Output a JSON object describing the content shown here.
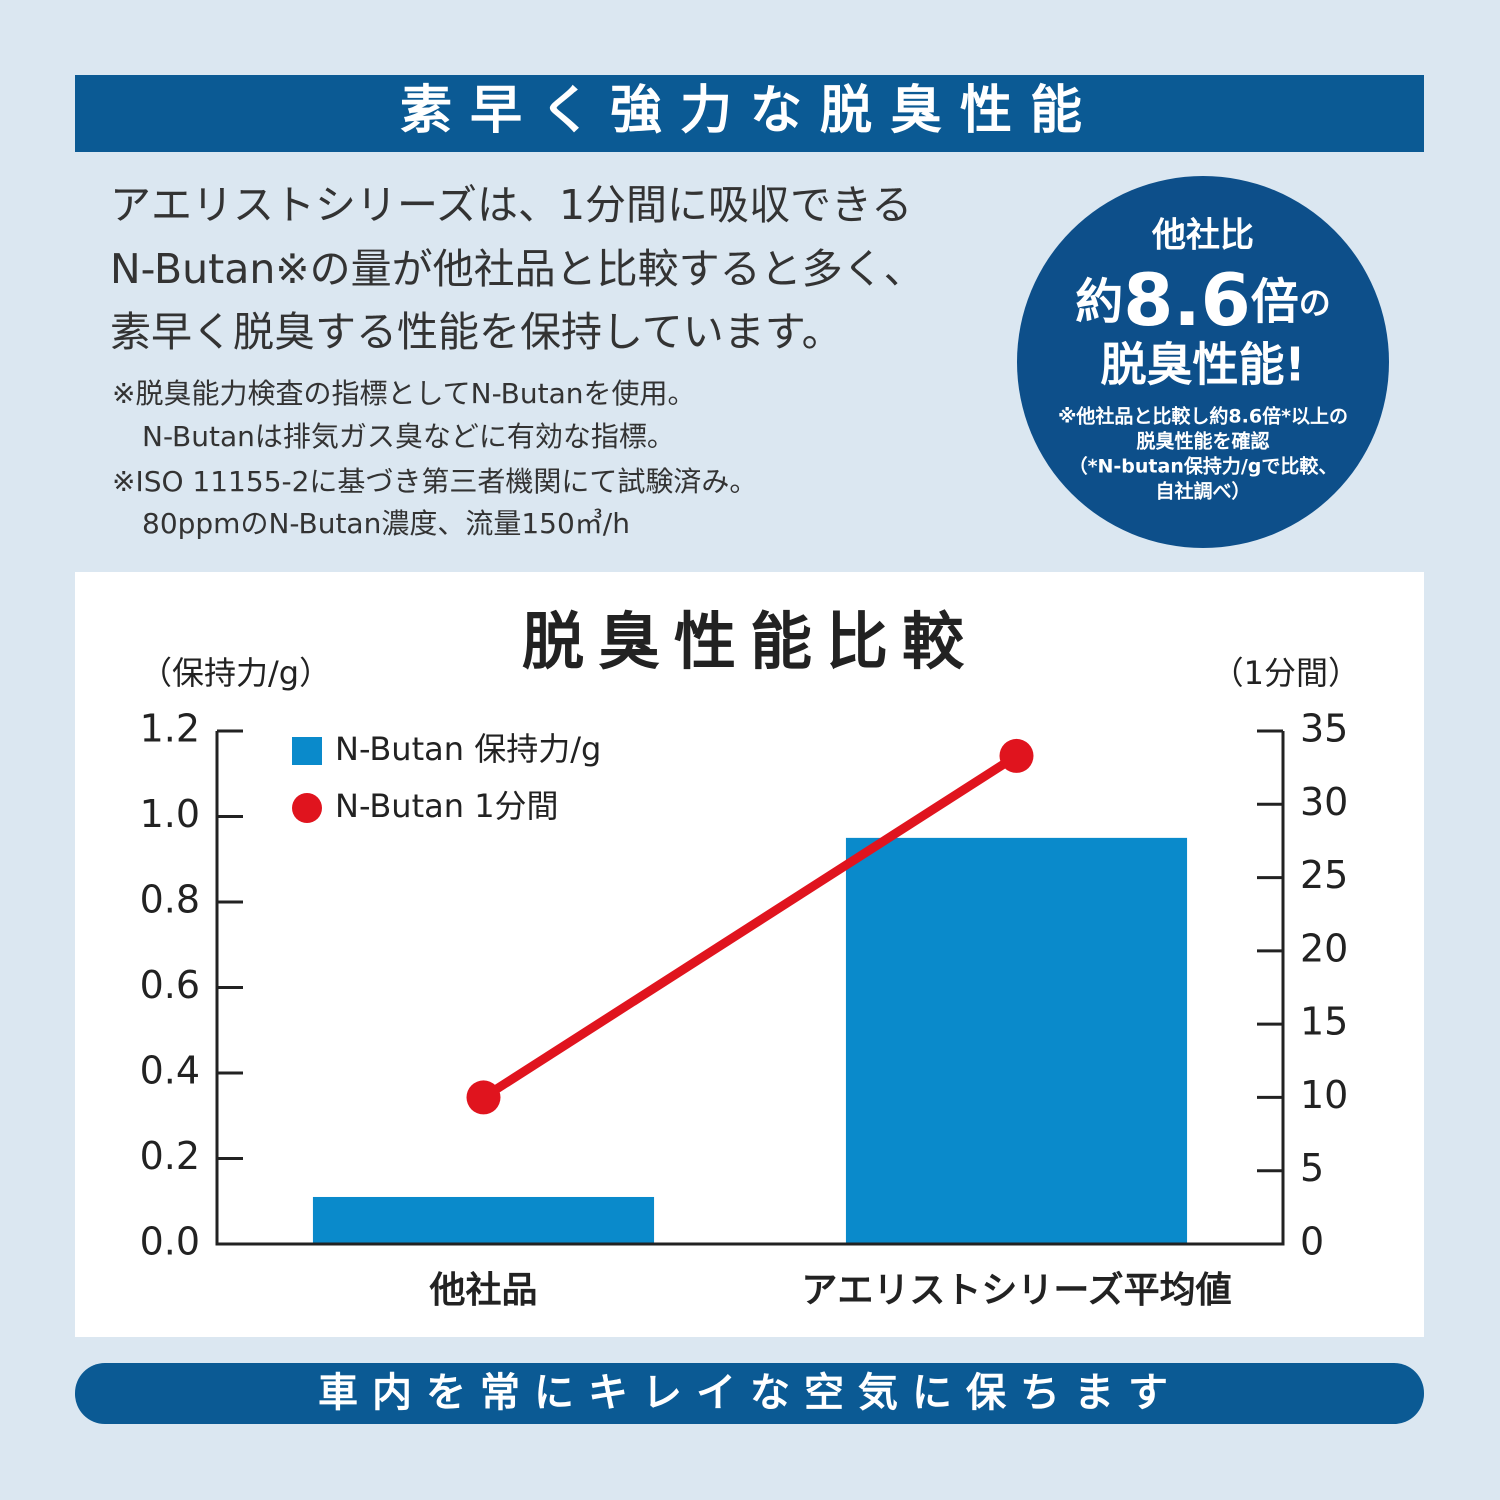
{
  "header": {
    "title": "素早く強力な脱臭性能"
  },
  "description": [
    "アエリストシリーズは、1分間に吸収できる",
    "N-Butan※の量が他社品と比較すると多く、",
    "素早く脱臭する性能を保持しています。"
  ],
  "notes": [
    "※脱臭能力検査の指標としてN-Butanを使用。",
    "N-Butanは排気ガス臭などに有効な指標。",
    "※ISO 11155-2に基づき第三者機関にて試験済み。",
    "80ppmのN-Butan濃度、流量150㎥/h"
  ],
  "badge": {
    "line1": "他社比",
    "line2": [
      "約",
      "8.6",
      "倍",
      "の"
    ],
    "line3": "脱臭性能!",
    "notes": [
      "※他社品と比較し約8.6倍*以上の",
      "脱臭性能を確認",
      "（*N-butan保持力/gで比較、",
      "自社調べ）"
    ]
  },
  "chart_data": {
    "type": "bar",
    "title": "脱臭性能比較",
    "y_label": "（保持力/g）",
    "y2_label": "（1分間）",
    "categories": [
      "他社品",
      "アエリストシリーズ平均値"
    ],
    "category_colors": [
      "#222222",
      "#e0141e"
    ],
    "series": [
      {
        "name": "N-Butan 保持力/g",
        "type": "bar",
        "color": "#0a8acb",
        "values": [
          0.11,
          0.95
        ]
      },
      {
        "name": "N-Butan 1分間",
        "type": "line",
        "axis": "y2",
        "color": "#e0141e",
        "values": [
          10,
          33.3
        ]
      }
    ],
    "ylim": [
      0,
      1.2
    ],
    "yticks": [
      {
        "value": 0,
        "label": "0.0"
      },
      0.2,
      0.4,
      0.6,
      0.8,
      {
        "value": 1,
        "label": "1.0"
      },
      1.2
    ],
    "y2lim": [
      0,
      35
    ],
    "y2ticks": [
      0,
      5,
      10,
      15,
      20,
      25,
      30,
      35
    ]
  },
  "footer": {
    "text": "車内を常にキレイな空気に保ちます"
  }
}
